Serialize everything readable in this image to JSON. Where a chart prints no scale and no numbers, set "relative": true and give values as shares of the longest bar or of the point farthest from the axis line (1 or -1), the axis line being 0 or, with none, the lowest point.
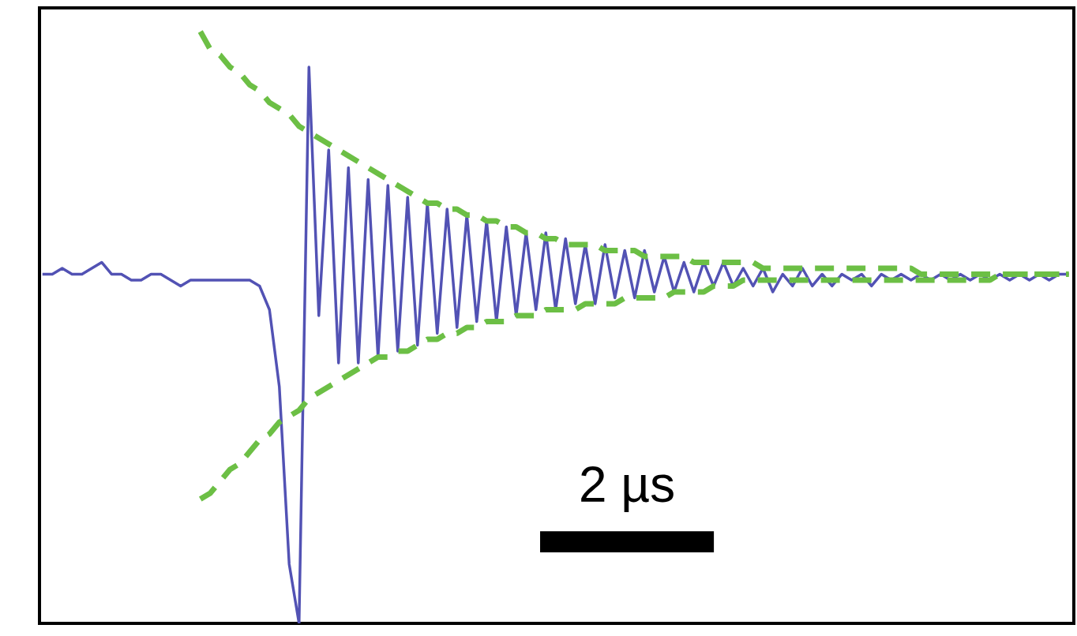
{
  "chart_data": {
    "type": "line",
    "relative": true,
    "tick_labels": false,
    "annotations": [
      "2 µs"
    ],
    "categories": [
      null,
      null,
      null,
      null,
      null,
      null,
      null,
      null,
      null,
      null,
      null,
      null,
      null,
      null,
      null,
      null,
      null,
      null,
      null,
      null,
      null,
      null,
      null,
      null,
      null,
      null,
      null,
      null,
      null,
      null,
      null,
      null,
      null,
      null,
      null,
      null,
      null,
      null,
      null,
      null,
      null,
      null,
      null,
      null,
      null,
      null,
      null,
      null,
      null,
      null,
      null,
      null,
      null,
      null,
      null,
      null,
      null,
      null,
      null,
      null,
      null,
      null,
      null,
      null,
      null,
      null,
      null,
      null,
      null,
      null,
      null,
      null,
      null,
      null,
      null,
      null,
      null,
      null,
      null,
      null,
      null,
      null,
      null,
      null,
      null,
      null,
      null,
      null,
      null,
      null,
      null,
      null,
      null,
      null,
      null,
      null,
      null,
      null,
      null,
      null,
      null,
      null,
      null,
      null,
      null
    ],
    "series": [
      {
        "color": "#5252b4",
        "line_style": "solid",
        "values": [
          0.59,
          0.59,
          0.6,
          0.59,
          0.59,
          0.6,
          0.61,
          0.59,
          0.59,
          0.58,
          0.58,
          0.59,
          0.59,
          0.58,
          0.57,
          0.58,
          0.58,
          0.58,
          0.58,
          0.58,
          0.58,
          0.58,
          0.57,
          0.53,
          0.4,
          0.1,
          0.0,
          0.94,
          0.52,
          0.8,
          0.44,
          0.77,
          0.44,
          0.75,
          0.45,
          0.74,
          0.46,
          0.72,
          0.47,
          0.71,
          0.49,
          0.7,
          0.5,
          0.69,
          0.51,
          0.68,
          0.51,
          0.67,
          0.52,
          0.66,
          0.53,
          0.66,
          0.53,
          0.65,
          0.54,
          0.64,
          0.54,
          0.64,
          0.55,
          0.63,
          0.55,
          0.63,
          0.56,
          0.62,
          0.56,
          0.61,
          0.56,
          0.61,
          0.57,
          0.61,
          0.57,
          0.6,
          0.57,
          0.6,
          0.56,
          0.59,
          0.57,
          0.6,
          0.57,
          0.59,
          0.57,
          0.59,
          0.58,
          0.59,
          0.57,
          0.59,
          0.58,
          0.59,
          0.58,
          0.59,
          0.58,
          0.59,
          0.58,
          0.59,
          0.58,
          0.59,
          0.58,
          0.59,
          0.58,
          0.59,
          0.58,
          0.59,
          0.58,
          0.59,
          0.59
        ]
      },
      {
        "color": "#6cbf45",
        "line_style": "dashed",
        "values": [
          null,
          null,
          null,
          null,
          null,
          null,
          null,
          null,
          null,
          null,
          null,
          null,
          null,
          null,
          null,
          null,
          1.0,
          0.97,
          0.96,
          0.94,
          0.93,
          0.91,
          0.9,
          0.88,
          0.87,
          0.86,
          0.84,
          0.83,
          0.82,
          0.81,
          0.8,
          0.79,
          0.78,
          0.77,
          0.76,
          0.75,
          0.74,
          0.73,
          0.72,
          0.71,
          0.71,
          0.7,
          0.7,
          0.69,
          0.69,
          0.68,
          0.68,
          0.67,
          0.67,
          0.66,
          0.66,
          0.65,
          0.65,
          0.64,
          0.64,
          0.64,
          0.64,
          0.63,
          0.63,
          0.63,
          0.63,
          0.62,
          0.62,
          0.62,
          0.62,
          0.62,
          0.61,
          0.61,
          0.61,
          0.61,
          0.61,
          0.61,
          0.61,
          0.6,
          0.6,
          0.6,
          0.6,
          0.6,
          0.6,
          0.6,
          0.6,
          0.6,
          0.6,
          0.6,
          0.6,
          0.6,
          0.6,
          0.6,
          0.6,
          0.59,
          0.59,
          0.59,
          0.59,
          0.59,
          0.59,
          0.59,
          0.59,
          0.59,
          0.59,
          0.59,
          0.59,
          0.59,
          0.59,
          0.59,
          0.59
        ]
      },
      {
        "color": "#6cbf45",
        "line_style": "dashed",
        "values": [
          null,
          null,
          null,
          null,
          null,
          null,
          null,
          null,
          null,
          null,
          null,
          null,
          null,
          null,
          null,
          null,
          0.21,
          0.22,
          0.24,
          0.26,
          0.27,
          0.29,
          0.31,
          0.32,
          0.34,
          0.35,
          0.36,
          0.38,
          0.39,
          0.4,
          0.41,
          0.42,
          0.43,
          0.44,
          0.45,
          0.45,
          0.46,
          0.46,
          0.47,
          0.48,
          0.48,
          0.49,
          0.49,
          0.5,
          0.5,
          0.51,
          0.51,
          0.51,
          0.52,
          0.52,
          0.52,
          0.53,
          0.53,
          0.53,
          0.53,
          0.54,
          0.54,
          0.54,
          0.54,
          0.55,
          0.55,
          0.55,
          0.55,
          0.55,
          0.56,
          0.56,
          0.56,
          0.56,
          0.57,
          0.57,
          0.57,
          0.58,
          0.58,
          0.58,
          0.58,
          0.58,
          0.58,
          0.58,
          0.58,
          0.58,
          0.58,
          0.58,
          0.58,
          0.58,
          0.58,
          0.58,
          0.58,
          0.58,
          0.58,
          0.58,
          0.58,
          0.58,
          0.58,
          0.58,
          0.58,
          0.58,
          0.58,
          0.59,
          0.59,
          0.59,
          0.59,
          0.59,
          0.59,
          0.59,
          0.59
        ]
      }
    ]
  }
}
